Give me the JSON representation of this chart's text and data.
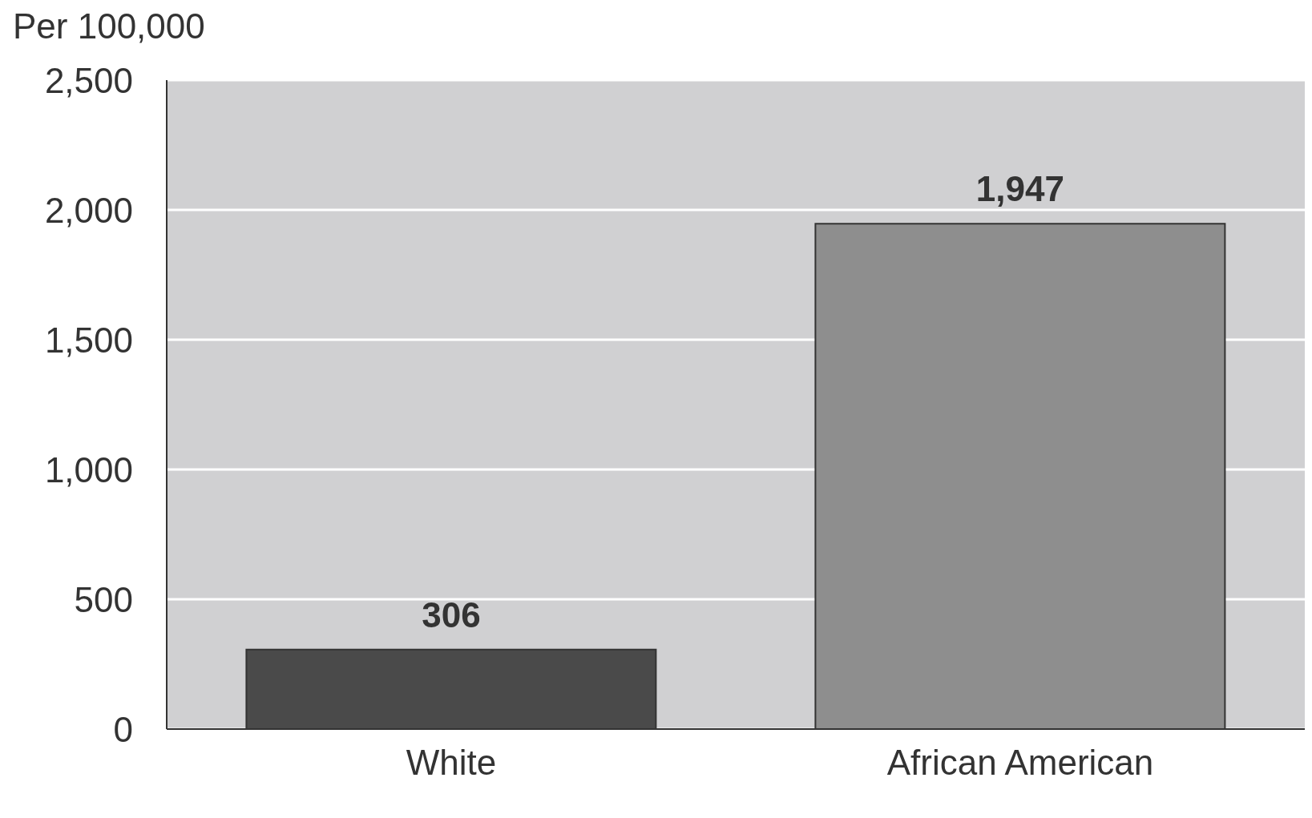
{
  "chart_data": {
    "type": "bar",
    "ylabel": "Per 100,000",
    "categories": [
      "White",
      "African American"
    ],
    "values": [
      306,
      1947
    ],
    "colors": [
      "#4a4a4a",
      "#8e8e8e"
    ],
    "ylim": [
      0,
      2500
    ],
    "yticks": [
      0,
      500,
      {
        "value": 1000,
        "label": "1,000"
      },
      {
        "value": 1500,
        "label": "1,500"
      },
      {
        "value": 2000,
        "label": "2,000"
      },
      {
        "value": 2500,
        "label": "2,500"
      }
    ],
    "grid": "y",
    "value_labels": [
      "306",
      "1,947"
    ]
  }
}
